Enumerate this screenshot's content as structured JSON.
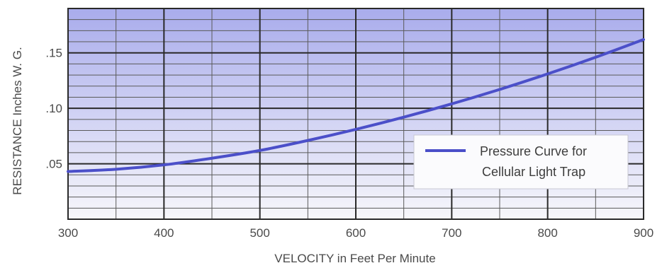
{
  "chart_data": {
    "type": "line",
    "title": "",
    "xlabel": "VELOCITY in Feet Per Minute",
    "ylabel": "RESISTANCE Inches W. G.",
    "xlim": [
      300,
      900
    ],
    "ylim": [
      0,
      0.19
    ],
    "x_ticks": [
      300,
      400,
      500,
      600,
      700,
      800,
      900
    ],
    "x_tick_labels": [
      "300",
      "400",
      "500",
      "600",
      "700",
      "800",
      "900"
    ],
    "y_ticks": [
      0.05,
      0.1,
      0.15
    ],
    "y_tick_labels": [
      ".05",
      ".10",
      ".15"
    ],
    "grid": true,
    "legend_position": "bottom-right",
    "series": [
      {
        "name": "Pressure Curve for Cellular Light Trap",
        "name_lines": [
          "Pressure Curve for",
          "Cellular Light Trap"
        ],
        "color": "#4b4fc9",
        "x": [
          300,
          350,
          400,
          450,
          500,
          550,
          600,
          650,
          700,
          750,
          800,
          850,
          900
        ],
        "y": [
          0.043,
          0.045,
          0.049,
          0.055,
          0.062,
          0.071,
          0.081,
          0.092,
          0.104,
          0.117,
          0.131,
          0.146,
          0.162
        ]
      }
    ],
    "colors": {
      "plot_bg_top": "#a9acec",
      "plot_bg_bottom": "#f7f7fb",
      "grid_major": "#2a2a2a",
      "grid_minor": "#5a5a5a",
      "axis_text": "#4a4a4a"
    }
  }
}
